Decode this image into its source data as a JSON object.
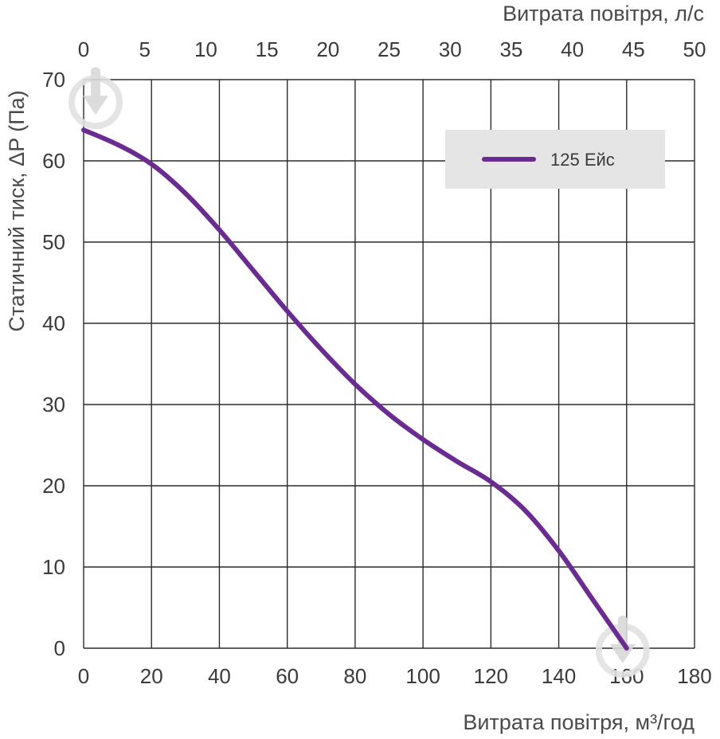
{
  "chart_data": {
    "type": "line",
    "xlabel": "Витрата повітря, м³/год",
    "x2label": "Витрата повітря, л/с",
    "ylabel": "Статичний тиск, ΔP (Па)",
    "xlim": [
      0,
      180
    ],
    "x2lim": [
      0,
      50
    ],
    "ylim": [
      0,
      70
    ],
    "xticks": [
      "0",
      "20",
      "40",
      "60",
      "80",
      "100",
      "120",
      "140",
      "160",
      "180"
    ],
    "x2ticks": [
      "0",
      "5",
      "10",
      "15",
      "20",
      "25",
      "30",
      "35",
      "40",
      "45",
      "50"
    ],
    "yticks": [
      "0",
      "10",
      "20",
      "30",
      "40",
      "50",
      "60",
      "70"
    ],
    "grid": true,
    "legend_position": "top-right",
    "series": [
      {
        "name": "125 Ейс",
        "color": "#6a2c91",
        "x": [
          0,
          10,
          20,
          30,
          40,
          50,
          60,
          70,
          80,
          90,
          100,
          110,
          120,
          130,
          140,
          150,
          160
        ],
        "y": [
          63.8,
          62.0,
          59.6,
          56.0,
          51.5,
          46.5,
          41.5,
          36.8,
          32.5,
          28.8,
          25.7,
          23.0,
          20.5,
          17.0,
          12.0,
          6.0,
          0.0
        ]
      }
    ]
  },
  "icons": {
    "start_marker": "down-arrow-circle-icon",
    "end_marker": "down-arrow-circle-icon"
  }
}
